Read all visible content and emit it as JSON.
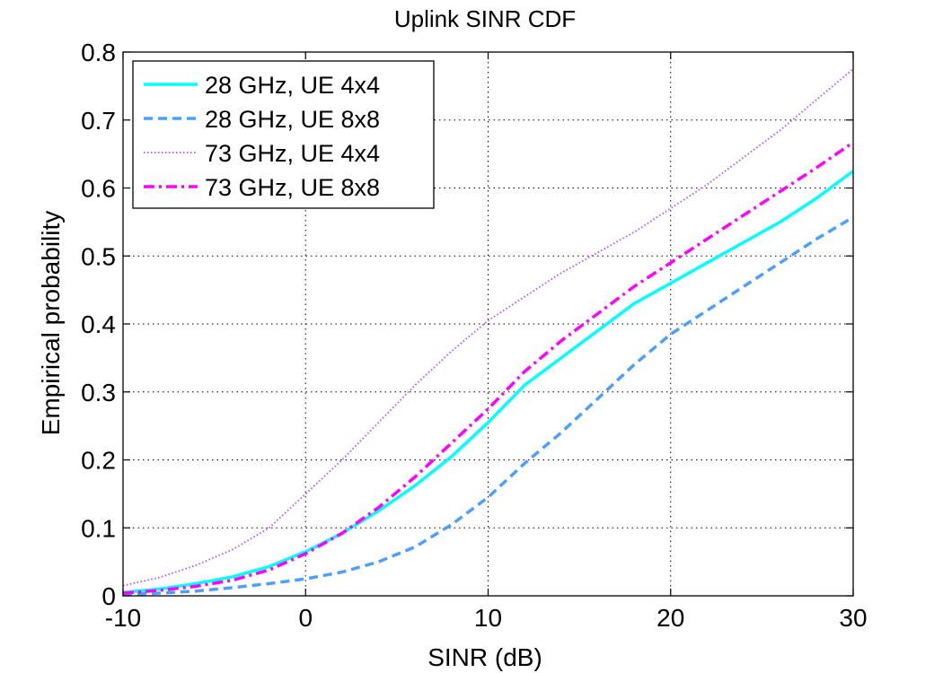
{
  "chart_data": {
    "type": "line",
    "title": "Uplink SINR CDF",
    "xlabel": "SINR (dB)",
    "ylabel": "Empirical probability",
    "xlim": [
      -10,
      30
    ],
    "ylim": [
      0,
      0.8
    ],
    "xticks": [
      -10,
      0,
      10,
      20,
      30
    ],
    "yticks": [
      0,
      0.1,
      0.2,
      0.3,
      0.4,
      0.5,
      0.6,
      0.7,
      0.8
    ],
    "xtick_labels": [
      "-10",
      "0",
      "10",
      "20",
      "30"
    ],
    "ytick_labels": [
      "0",
      "0.1",
      "0.2",
      "0.3",
      "0.4",
      "0.5",
      "0.6",
      "0.7",
      "0.8"
    ],
    "grid": true,
    "legend_position": "top-left",
    "series": [
      {
        "name": "28 GHz, UE 4x4",
        "color": "#00FFFF",
        "style": "solid",
        "x": [
          -10,
          -8,
          -6,
          -4,
          -2,
          0,
          2,
          4,
          6,
          8,
          10,
          12,
          14,
          16,
          18,
          20,
          22,
          24,
          26,
          28,
          30
        ],
        "y": [
          0.005,
          0.01,
          0.018,
          0.028,
          0.043,
          0.065,
          0.092,
          0.125,
          0.162,
          0.205,
          0.255,
          0.31,
          0.35,
          0.39,
          0.43,
          0.46,
          0.49,
          0.52,
          0.55,
          0.585,
          0.625
        ]
      },
      {
        "name": "28 GHz, UE 8x8",
        "color": "#4D9FFF",
        "style": "dashed",
        "x": [
          -10,
          -8,
          -6,
          -4,
          -2,
          0,
          2,
          4,
          6,
          8,
          10,
          12,
          14,
          16,
          18,
          20,
          22,
          24,
          26,
          28,
          30
        ],
        "y": [
          0.002,
          0.004,
          0.007,
          0.012,
          0.018,
          0.025,
          0.035,
          0.05,
          0.072,
          0.105,
          0.145,
          0.195,
          0.24,
          0.29,
          0.34,
          0.385,
          0.42,
          0.455,
          0.49,
          0.525,
          0.557
        ]
      },
      {
        "name": "73 GHz, UE 4x4",
        "color": "#B44BFF",
        "style": "dotted",
        "x": [
          -10,
          -8,
          -6,
          -4,
          -2,
          0,
          2,
          4,
          6,
          8,
          10,
          12,
          14,
          16,
          18,
          20,
          22,
          24,
          26,
          28,
          30
        ],
        "y": [
          0.015,
          0.027,
          0.045,
          0.068,
          0.1,
          0.15,
          0.2,
          0.255,
          0.31,
          0.36,
          0.405,
          0.44,
          0.475,
          0.505,
          0.535,
          0.57,
          0.605,
          0.645,
          0.685,
          0.73,
          0.775
        ]
      },
      {
        "name": "73 GHz, UE 8x8",
        "color": "#FF00FF",
        "style": "dashdot",
        "x": [
          -10,
          -8,
          -6,
          -4,
          -2,
          0,
          2,
          4,
          6,
          8,
          10,
          12,
          14,
          16,
          18,
          20,
          22,
          24,
          26,
          28,
          30
        ],
        "y": [
          0.004,
          0.008,
          0.014,
          0.023,
          0.038,
          0.062,
          0.092,
          0.13,
          0.175,
          0.225,
          0.275,
          0.33,
          0.375,
          0.415,
          0.455,
          0.49,
          0.525,
          0.56,
          0.595,
          0.63,
          0.667
        ]
      }
    ]
  }
}
